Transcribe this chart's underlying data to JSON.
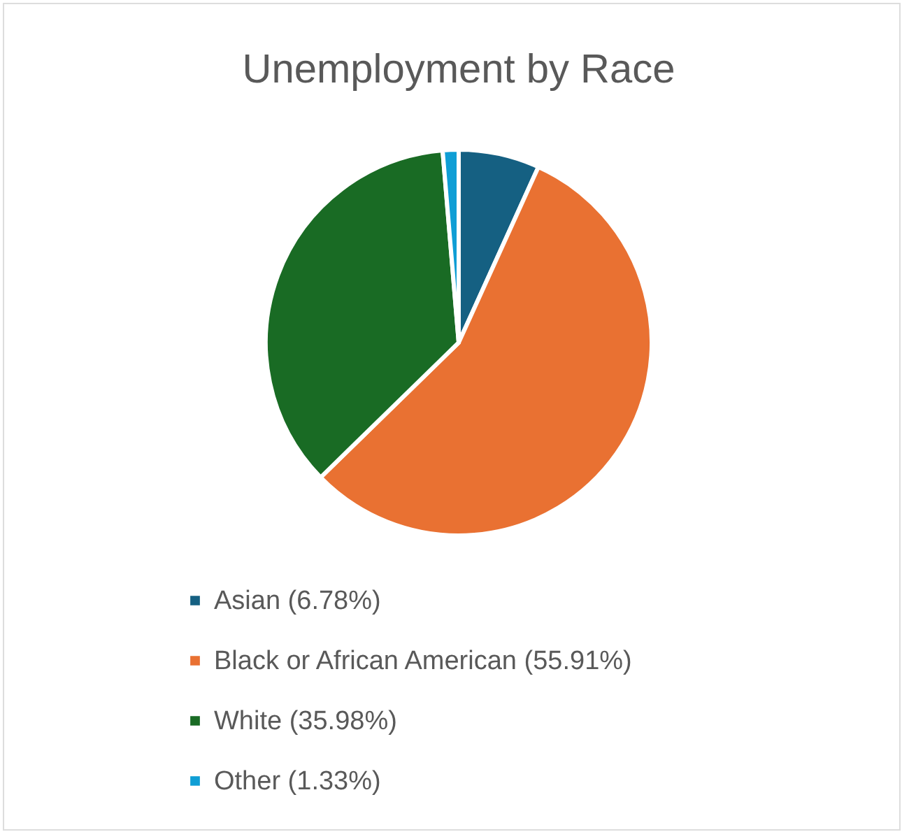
{
  "chart_data": {
    "type": "pie",
    "title": "Unemployment by Race",
    "categories": [
      "Asian (6.78%)",
      "Black or African American (55.91%)",
      "White (35.98%)",
      "Other (1.33%)"
    ],
    "values": [
      6.78,
      55.91,
      35.98,
      1.33
    ],
    "colors": [
      "#156082",
      "#e97132",
      "#196b24",
      "#0f9ed5"
    ],
    "legend": "bottom"
  }
}
